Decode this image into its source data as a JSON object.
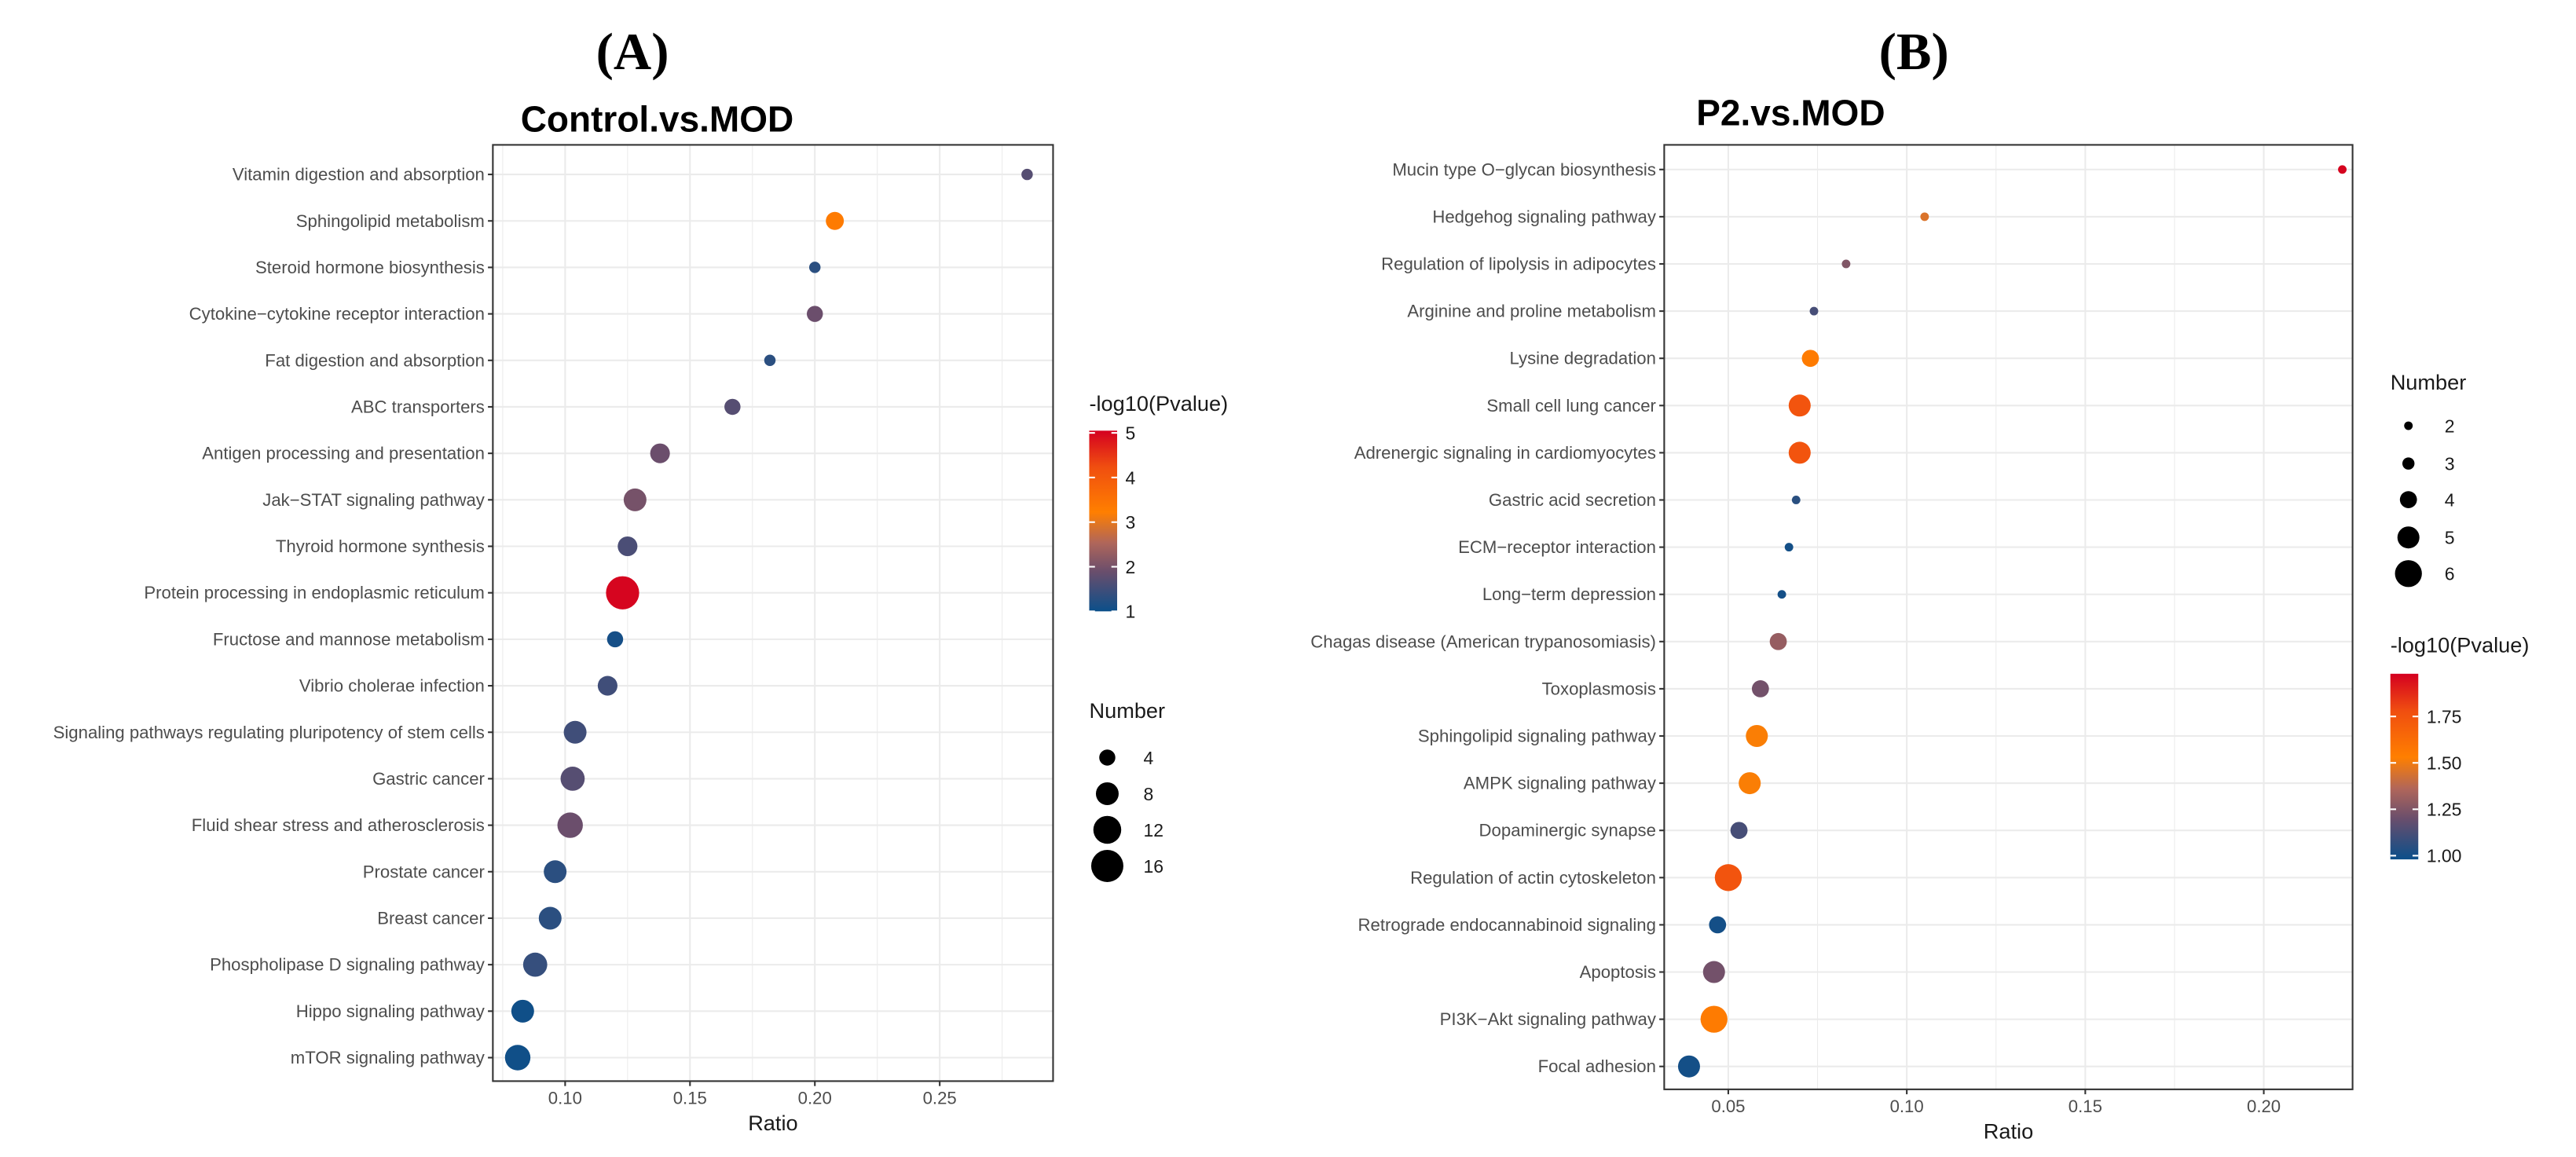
{
  "chart_data": [
    {
      "type": "scatter",
      "panel_label": "(A)",
      "title": "Control.vs.MOD",
      "xlabel": "Ratio",
      "ylabel": "",
      "xlim": [
        0.072,
        0.293
      ],
      "xticks": [
        0.1,
        0.15,
        0.2,
        0.25
      ],
      "xtick_labels": [
        "0.10",
        "0.15",
        "0.20",
        "0.25"
      ],
      "grid": true,
      "color_legend": {
        "title": "-log10(Pvalue)",
        "range": [
          1,
          5.05
        ],
        "ticks": [
          1,
          2,
          3,
          4,
          5
        ],
        "tick_labels": [
          "1",
          "2",
          "3",
          "4",
          "5"
        ]
      },
      "size_legend": {
        "title": "Number",
        "values": [
          4,
          8,
          12,
          16
        ],
        "labels": [
          "4",
          "8",
          "12",
          "16"
        ]
      },
      "legend_order": [
        "color",
        "size"
      ],
      "legend_placement": "right",
      "points": [
        {
          "term": "Vitamin digestion and absorption",
          "ratio": 0.285,
          "neglog10p": 1.7,
          "number": 2
        },
        {
          "term": "Sphingolipid metabolism",
          "ratio": 0.208,
          "neglog10p": 3.3,
          "number": 5
        },
        {
          "term": "Steroid hormone biosynthesis",
          "ratio": 0.2,
          "neglog10p": 1.3,
          "number": 2
        },
        {
          "term": "Cytokine−cytokine receptor interaction",
          "ratio": 0.2,
          "neglog10p": 1.9,
          "number": 4
        },
        {
          "term": "Fat digestion and absorption",
          "ratio": 0.182,
          "neglog10p": 1.3,
          "number": 2
        },
        {
          "term": "ABC transporters",
          "ratio": 0.167,
          "neglog10p": 1.7,
          "number": 4
        },
        {
          "term": "Antigen processing and presentation",
          "ratio": 0.138,
          "neglog10p": 1.9,
          "number": 6
        },
        {
          "term": "Jak−STAT signaling pathway",
          "ratio": 0.128,
          "neglog10p": 2.0,
          "number": 8
        },
        {
          "term": "Thyroid hormone synthesis",
          "ratio": 0.125,
          "neglog10p": 1.6,
          "number": 6
        },
        {
          "term": "Protein processing in endoplasmic reticulum",
          "ratio": 0.123,
          "neglog10p": 5.0,
          "number": 17
        },
        {
          "term": "Fructose and mannose metabolism",
          "ratio": 0.12,
          "neglog10p": 1.1,
          "number": 4
        },
        {
          "term": "Vibrio cholerae infection",
          "ratio": 0.117,
          "neglog10p": 1.5,
          "number": 6
        },
        {
          "term": "Signaling pathways regulating pluripotency of stem cells",
          "ratio": 0.104,
          "neglog10p": 1.5,
          "number": 8
        },
        {
          "term": "Gastric cancer",
          "ratio": 0.103,
          "neglog10p": 1.7,
          "number": 9
        },
        {
          "term": "Fluid shear stress and atherosclerosis",
          "ratio": 0.102,
          "neglog10p": 1.9,
          "number": 10
        },
        {
          "term": "Prostate cancer",
          "ratio": 0.096,
          "neglog10p": 1.3,
          "number": 8
        },
        {
          "term": "Breast cancer",
          "ratio": 0.094,
          "neglog10p": 1.3,
          "number": 8
        },
        {
          "term": "Phospholipase D signaling pathway",
          "ratio": 0.088,
          "neglog10p": 1.4,
          "number": 9
        },
        {
          "term": "Hippo signaling pathway",
          "ratio": 0.083,
          "neglog10p": 1.05,
          "number": 8
        },
        {
          "term": "mTOR signaling pathway",
          "ratio": 0.081,
          "neglog10p": 1.05,
          "number": 10
        }
      ]
    },
    {
      "type": "scatter",
      "panel_label": "(B)",
      "title": "P2.vs.MOD",
      "xlabel": "Ratio",
      "ylabel": "",
      "xlim": [
        0.032,
        0.231
      ],
      "xticks": [
        0.05,
        0.1,
        0.15,
        0.2
      ],
      "xtick_labels": [
        "0.05",
        "0.10",
        "0.15",
        "0.20"
      ],
      "grid": true,
      "color_legend": {
        "title": "-log10(Pvalue)",
        "range": [
          0.98,
          1.98
        ],
        "ticks": [
          1.0,
          1.25,
          1.5,
          1.75
        ],
        "tick_labels": [
          "1.00",
          "1.25",
          "1.50",
          "1.75"
        ]
      },
      "size_legend": {
        "title": "Number",
        "values": [
          2,
          3,
          4,
          5,
          6
        ],
        "labels": [
          "2",
          "3",
          "4",
          "5",
          "6"
        ]
      },
      "legend_order": [
        "size",
        "color"
      ],
      "legend_placement": "right",
      "points": [
        {
          "term": "Mucin type O−glycan biosynthesis",
          "ratio": 0.222,
          "neglog10p": 1.97,
          "number": 2
        },
        {
          "term": "Hedgehog signaling pathway",
          "ratio": 0.105,
          "neglog10p": 1.45,
          "number": 2
        },
        {
          "term": "Regulation of lipolysis in adipocytes",
          "ratio": 0.083,
          "neglog10p": 1.25,
          "number": 2
        },
        {
          "term": "Arginine and proline metabolism",
          "ratio": 0.074,
          "neglog10p": 1.12,
          "number": 2
        },
        {
          "term": "Lysine degradation",
          "ratio": 0.073,
          "neglog10p": 1.55,
          "number": 4
        },
        {
          "term": "Small cell lung cancer",
          "ratio": 0.07,
          "neglog10p": 1.75,
          "number": 5
        },
        {
          "term": "Adrenergic signaling in cardiomyocytes",
          "ratio": 0.07,
          "neglog10p": 1.75,
          "number": 5
        },
        {
          "term": "Gastric acid secretion",
          "ratio": 0.069,
          "neglog10p": 1.05,
          "number": 2
        },
        {
          "term": "ECM−receptor interaction",
          "ratio": 0.067,
          "neglog10p": 1.0,
          "number": 2
        },
        {
          "term": "Long−term depression",
          "ratio": 0.065,
          "neglog10p": 1.0,
          "number": 2
        },
        {
          "term": "Chagas disease (American trypanosomiasis)",
          "ratio": 0.064,
          "neglog10p": 1.3,
          "number": 4
        },
        {
          "term": "Toxoplasmosis",
          "ratio": 0.059,
          "neglog10p": 1.22,
          "number": 4
        },
        {
          "term": "Sphingolipid signaling pathway",
          "ratio": 0.058,
          "neglog10p": 1.52,
          "number": 5
        },
        {
          "term": "AMPK signaling pathway",
          "ratio": 0.056,
          "neglog10p": 1.52,
          "number": 5
        },
        {
          "term": "Dopaminergic synapse",
          "ratio": 0.053,
          "neglog10p": 1.12,
          "number": 4
        },
        {
          "term": "Regulation of actin cytoskeleton",
          "ratio": 0.05,
          "neglog10p": 1.75,
          "number": 6
        },
        {
          "term": "Retrograde endocannabinoid signaling",
          "ratio": 0.047,
          "neglog10p": 1.0,
          "number": 4
        },
        {
          "term": "Apoptosis",
          "ratio": 0.046,
          "neglog10p": 1.22,
          "number": 5
        },
        {
          "term": "PI3K−Akt signaling pathway",
          "ratio": 0.046,
          "neglog10p": 1.55,
          "number": 6
        },
        {
          "term": "Focal adhesion",
          "ratio": 0.039,
          "neglog10p": 1.0,
          "number": 5
        }
      ]
    }
  ]
}
